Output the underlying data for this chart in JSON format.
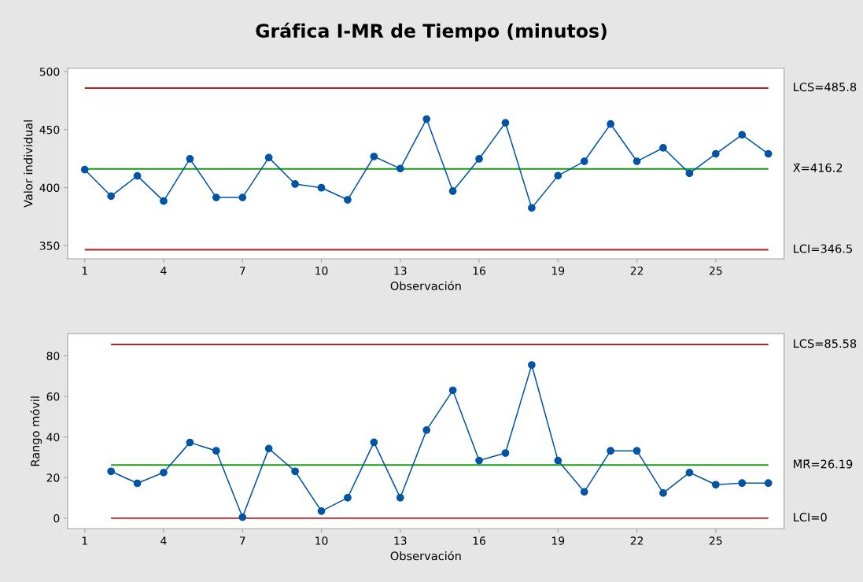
{
  "chart_data": [
    {
      "type": "line",
      "title": "Gráfica I-MR de Tiempo (minutos)",
      "xlabel": "Observación",
      "ylabel": "Valor individual",
      "series": [
        {
          "color": "#0054a6",
          "x": [
            1,
            2,
            3,
            4,
            5,
            6,
            7,
            8,
            9,
            10,
            11,
            12,
            13,
            14,
            15,
            16,
            17,
            18,
            19,
            20,
            21,
            22,
            23,
            24,
            25,
            26,
            27
          ],
          "values": [
            415.5,
            392.7,
            410.1,
            388.4,
            424.8,
            391.5,
            391.5,
            425.9,
            403.1,
            399.9,
            389.5,
            426.8,
            416.4,
            459.1,
            397.0,
            424.8,
            455.9,
            382.5,
            410.3,
            422.7,
            454.8,
            422.7,
            434.3,
            412.3,
            429.1,
            445.5,
            429.1
          ]
        }
      ],
      "xlim": [
        0.35,
        27.6
      ],
      "xticks": [
        1,
        4,
        7,
        10,
        13,
        16,
        19,
        22,
        25
      ],
      "ylim": [
        338.7,
        502.9
      ],
      "yticks": [
        350,
        400,
        450,
        500
      ],
      "ref_lines": [
        {
          "axis": "y",
          "value": 485.8,
          "label": "LCS=485.8",
          "color": "#b22222"
        },
        {
          "axis": "y",
          "value": 416.2,
          "label": "X̄=416.2",
          "color": "#1a9a1a"
        },
        {
          "axis": "y",
          "value": 346.5,
          "label": "LCI=346.5",
          "color": "#b22222"
        }
      ],
      "grid": false,
      "legend": false,
      "marker": "circle",
      "line_style": "solid"
    },
    {
      "type": "line",
      "xlabel": "Observación",
      "ylabel": "Rango móvil",
      "series": [
        {
          "color": "#0054a6",
          "x": [
            2,
            3,
            4,
            5,
            6,
            7,
            8,
            9,
            10,
            11,
            12,
            13,
            14,
            15,
            16,
            17,
            18,
            19,
            20,
            21,
            22,
            23,
            24,
            25,
            26,
            27
          ],
          "values": [
            23.1,
            17.2,
            22.5,
            37.3,
            33.2,
            0.5,
            34.3,
            23.1,
            3.5,
            10.1,
            37.4,
            10.1,
            43.4,
            63.0,
            28.4,
            32.1,
            75.5,
            28.4,
            13.0,
            33.2,
            33.2,
            12.4,
            22.5,
            16.5,
            17.3,
            17.3
          ]
        }
      ],
      "xlim": [
        0.35,
        27.6
      ],
      "xticks": [
        1,
        4,
        7,
        10,
        13,
        16,
        19,
        22,
        25
      ],
      "ylim": [
        -5.2,
        90.9
      ],
      "yticks": [
        0,
        20,
        40,
        60,
        80
      ],
      "ref_lines": [
        {
          "axis": "y",
          "value": 85.58,
          "label": "LCS=85.58",
          "color": "#b22222"
        },
        {
          "axis": "y",
          "value": 26.19,
          "label": "M̄R̄=26.19",
          "color": "#1a9a1a"
        },
        {
          "axis": "y",
          "value": 0,
          "label": "LCI=0",
          "color": "#b22222"
        }
      ],
      "grid": false,
      "legend": false,
      "marker": "circle",
      "line_style": "solid"
    }
  ]
}
